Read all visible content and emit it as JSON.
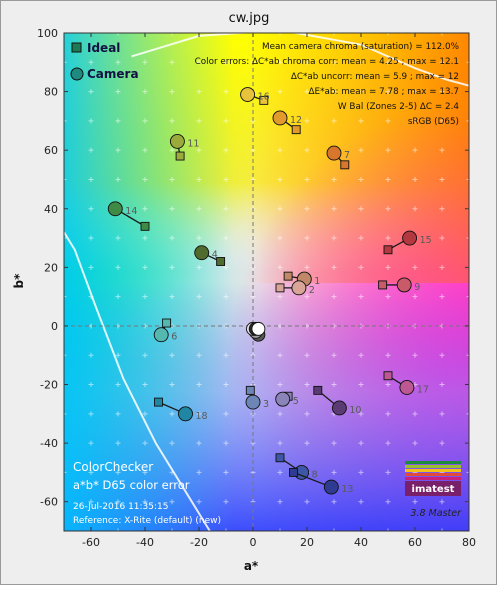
{
  "window": {
    "title": "cw.jpg"
  },
  "chart_data": {
    "type": "scatter",
    "title": "cw.jpg",
    "xlabel": "a*",
    "ylabel": "b*",
    "xlim": [
      -70,
      80
    ],
    "ylim": [
      -70,
      100
    ],
    "xticks": [
      -60,
      -40,
      -20,
      0,
      20,
      40,
      60,
      80
    ],
    "yticks": [
      -60,
      -40,
      -20,
      0,
      20,
      40,
      60,
      80,
      100
    ],
    "grid": true,
    "legend": {
      "position": "top-left",
      "entries": [
        {
          "label": "Ideal",
          "marker": "square"
        },
        {
          "label": "Camera",
          "marker": "circle"
        }
      ]
    },
    "annotations": [
      "Mean camera chroma (saturation) = 112.0%",
      "Color errors: ΔC*ab chroma corr:  mean = 4.25 ;  max = 12.1",
      "ΔC*ab uncorr:  mean = 5.9 ;  max = 12",
      "ΔE*ab:  mean = 7.78 ;  max = 13.7",
      "W Bal (Zones 2-5) ΔC = 2.4",
      "sRGB (D65)"
    ],
    "footer": {
      "lines": [
        "ColorChecker",
        "a*b* D65 color error",
        "26-Jul-2016 11:35:15",
        "Reference: X-Rite (default) (new)"
      ],
      "logo": "imatest",
      "version": "3.8  Master"
    },
    "patches": [
      {
        "id": "1",
        "ideal": [
          13,
          17
        ],
        "camera": [
          19,
          16
        ],
        "color": "#c08868"
      },
      {
        "id": "2",
        "ideal": [
          10,
          13
        ],
        "camera": [
          17,
          13
        ],
        "color": "#d8a598"
      },
      {
        "id": "3",
        "ideal": [
          -1,
          -22
        ],
        "camera": [
          0,
          -26
        ],
        "color": "#6d86b5"
      },
      {
        "id": "4",
        "ideal": [
          -12,
          22
        ],
        "camera": [
          -19,
          25
        ],
        "color": "#4f6b2e"
      },
      {
        "id": "5",
        "ideal": [
          13,
          -24
        ],
        "camera": [
          11,
          -25
        ],
        "color": "#8a84b9"
      },
      {
        "id": "6",
        "ideal": [
          -32,
          1
        ],
        "camera": [
          -34,
          -3
        ],
        "color": "#55b8b0"
      },
      {
        "id": "7",
        "ideal": [
          34,
          55
        ],
        "camera": [
          30,
          59
        ],
        "color": "#d9762e"
      },
      {
        "id": "8",
        "ideal": [
          10,
          -45
        ],
        "camera": [
          18,
          -50
        ],
        "color": "#3d56a5"
      },
      {
        "id": "9",
        "ideal": [
          48,
          14
        ],
        "camera": [
          56,
          14
        ],
        "color": "#c85a69"
      },
      {
        "id": "10",
        "ideal": [
          24,
          -22
        ],
        "camera": [
          32,
          -28
        ],
        "color": "#5a3b74"
      },
      {
        "id": "11",
        "ideal": [
          -27,
          58
        ],
        "camera": [
          -28,
          63
        ],
        "color": "#9aab3c"
      },
      {
        "id": "12",
        "ideal": [
          16,
          67
        ],
        "camera": [
          10,
          71
        ],
        "color": "#e29a2d"
      },
      {
        "id": "13",
        "ideal": [
          15,
          -50
        ],
        "camera": [
          29,
          -55
        ],
        "color": "#2e3b90"
      },
      {
        "id": "14",
        "ideal": [
          -40,
          34
        ],
        "camera": [
          -51,
          40
        ],
        "color": "#3f8a45"
      },
      {
        "id": "15",
        "ideal": [
          50,
          26
        ],
        "camera": [
          58,
          30
        ],
        "color": "#b33840"
      },
      {
        "id": "16",
        "ideal": [
          4,
          77
        ],
        "camera": [
          -2,
          79
        ],
        "color": "#e6c33a"
      },
      {
        "id": "17",
        "ideal": [
          50,
          -17
        ],
        "camera": [
          57,
          -21
        ],
        "color": "#bd5893"
      },
      {
        "id": "18",
        "ideal": [
          -35,
          -26
        ],
        "camera": [
          -25,
          -30
        ],
        "color": "#1f86a4"
      }
    ],
    "neutrals": [
      {
        "camera": [
          2,
          -3
        ],
        "color": "#555555"
      },
      {
        "camera": [
          1,
          -2
        ],
        "color": "#a0a0a0"
      },
      {
        "camera": [
          0,
          -1
        ],
        "color": "#e6e6e6"
      },
      {
        "camera": [
          1,
          -1
        ],
        "color": "#2a2a2a"
      },
      {
        "camera": [
          2,
          -1
        ],
        "color": "#ffffff"
      }
    ]
  }
}
